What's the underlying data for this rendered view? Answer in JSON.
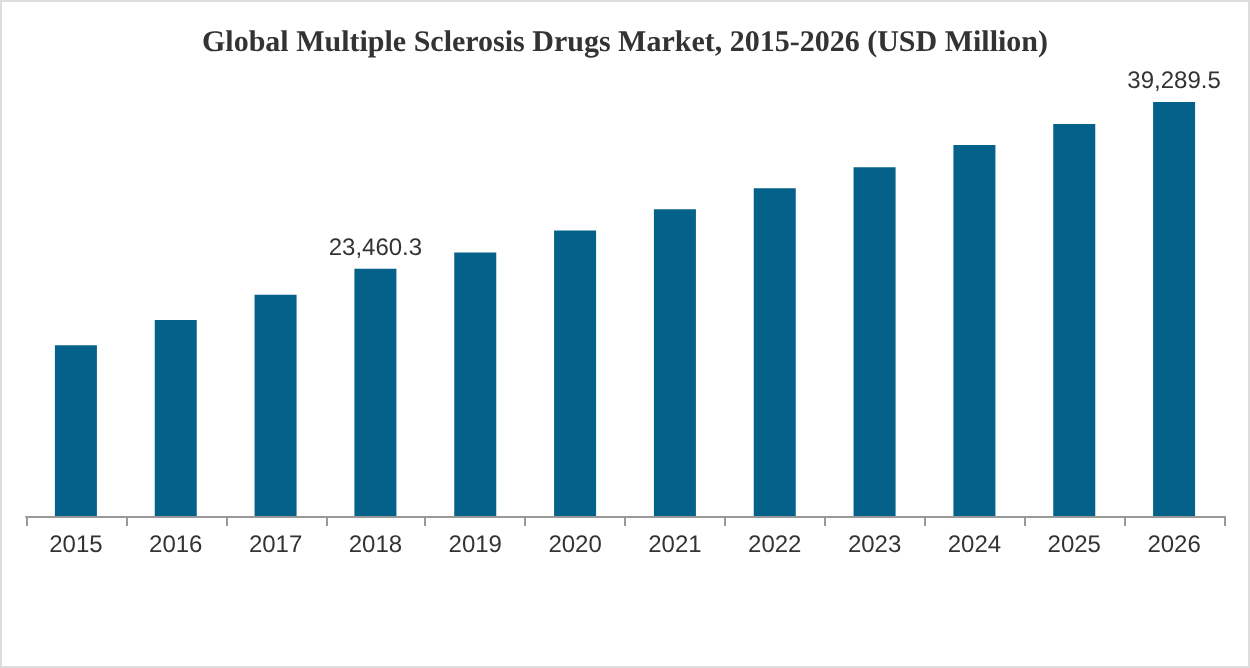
{
  "chart_data": {
    "type": "bar",
    "title": "Global Multiple Sclerosis Drugs Market, 2015-2026 (USD Million)",
    "categories": [
      "2015",
      "2016",
      "2017",
      "2018",
      "2019",
      "2020",
      "2021",
      "2022",
      "2023",
      "2024",
      "2025",
      "2026"
    ],
    "values": [
      16200,
      18600,
      21000,
      23460.3,
      25000,
      27100,
      29100,
      31100,
      33100,
      35200,
      37200,
      39289.5
    ],
    "value_labels": [
      null,
      null,
      null,
      "23,460.3",
      null,
      null,
      null,
      null,
      null,
      null,
      null,
      "39,289.5"
    ],
    "color": "#04618a"
  }
}
